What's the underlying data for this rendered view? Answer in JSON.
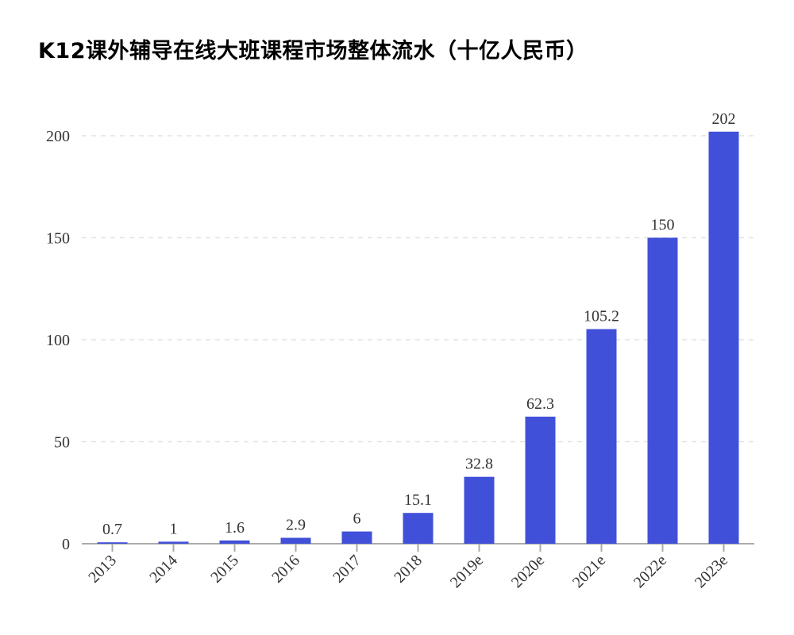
{
  "chart_data": {
    "type": "bar",
    "title": "K12课外辅导在线大班课程市场整体流水（十亿人民币）",
    "categories": [
      "2013",
      "2014",
      "2015",
      "2016",
      "2017",
      "2018",
      "2019e",
      "2020e",
      "2021e",
      "2022e",
      "2023e"
    ],
    "values": [
      0.7,
      1,
      1.6,
      2.9,
      6,
      15.1,
      32.8,
      62.3,
      105.2,
      150,
      202
    ],
    "value_labels": [
      "0.7",
      "1",
      "1.6",
      "2.9",
      "6",
      "15.1",
      "32.8",
      "62.3",
      "105.2",
      "150",
      "202"
    ],
    "xlabel": "",
    "ylabel": "",
    "ylim": [
      0,
      200
    ],
    "yticks": [
      "0",
      "50",
      "100",
      "150",
      "200"
    ],
    "grid": "horizontal dashed",
    "bar_color": "#4150d8",
    "legend": "none"
  }
}
